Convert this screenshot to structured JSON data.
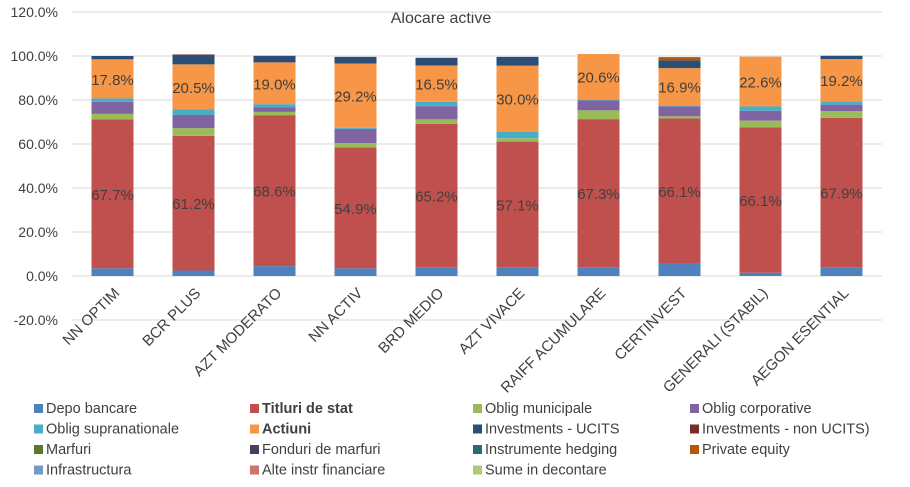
{
  "chart_data": {
    "type": "bar",
    "stacked": true,
    "title": "Alocare active",
    "xlabel": "",
    "ylabel": "",
    "ylim": [
      -0.2,
      1.2
    ],
    "yticks": [
      -0.2,
      0.0,
      0.2,
      0.4,
      0.6,
      0.8,
      1.0,
      1.2
    ],
    "ytick_labels": [
      "-20.0%",
      "0.0%",
      "20.0%",
      "40.0%",
      "60.0%",
      "80.0%",
      "100.0%",
      "120.0%"
    ],
    "grid": true,
    "legend_position": "bottom",
    "categories": [
      "NN OPTIM",
      "BCR PLUS",
      "AZT MODERATO",
      "NN ACTIV",
      "BRD MEDIO",
      "AZT VIVACE",
      "RAIFF ACUMULARE",
      "CERTINVEST",
      "GENERALI (STABIL)",
      "AEGON ESENTIAL"
    ],
    "series": [
      {
        "name": "Depo bancare",
        "color": "#4F81BD",
        "values": [
          0.035,
          0.025,
          0.045,
          0.035,
          0.04,
          0.04,
          0.04,
          0.055,
          0.015,
          0.04
        ]
      },
      {
        "name": "Titluri de stat",
        "color": "#C0504D",
        "values": [
          0.677,
          0.612,
          0.686,
          0.549,
          0.652,
          0.571,
          0.673,
          0.661,
          0.661,
          0.679
        ],
        "labels": [
          "67.7%",
          "61.2%",
          "68.6%",
          "54.9%",
          "65.2%",
          "57.1%",
          "67.3%",
          "66.1%",
          "66.1%",
          "67.9%"
        ]
      },
      {
        "name": "Oblig municipale",
        "color": "#9BBB59",
        "values": [
          0.025,
          0.035,
          0.015,
          0.02,
          0.02,
          0.015,
          0.04,
          0.01,
          0.03,
          0.03
        ]
      },
      {
        "name": "Oblig corporative",
        "color": "#8064A2",
        "values": [
          0.055,
          0.06,
          0.02,
          0.065,
          0.06,
          0.0,
          0.045,
          0.045,
          0.045,
          0.03
        ]
      },
      {
        "name": "Oblig supranationale",
        "color": "#4BACC6",
        "values": [
          0.015,
          0.025,
          0.015,
          0.005,
          0.02,
          0.03,
          0.005,
          0.005,
          0.02,
          0.015
        ]
      },
      {
        "name": "Actiuni",
        "color": "#F79646",
        "values": [
          0.178,
          0.205,
          0.19,
          0.292,
          0.165,
          0.3,
          0.206,
          0.169,
          0.226,
          0.192
        ],
        "labels": [
          "17.8%",
          "20.5%",
          "19.0%",
          "29.2%",
          "16.5%",
          "30.0%",
          "20.6%",
          "16.9%",
          "22.6%",
          "19.2%"
        ]
      },
      {
        "name": "Investments - UCITS",
        "color": "#2C4D75",
        "values": [
          0.015,
          0.04,
          0.03,
          0.03,
          0.035,
          0.04,
          0.0,
          0.035,
          0.0,
          0.015
        ]
      },
      {
        "name": "Investments - non UCITS)",
        "color": "#772C2A",
        "values": [
          0,
          0.005,
          0,
          0,
          0,
          0,
          0,
          0,
          0,
          0
        ]
      },
      {
        "name": "Marfuri",
        "color": "#5F7530",
        "values": [
          0,
          0,
          0,
          0,
          0,
          0,
          0,
          0,
          0,
          0
        ]
      },
      {
        "name": "Fonduri de marfuri",
        "color": "#4D3B62",
        "values": [
          0,
          0,
          0,
          0,
          0,
          0,
          0,
          0,
          0,
          0
        ]
      },
      {
        "name": "Instrumente hedging",
        "color": "#276A7C",
        "values": [
          0,
          0,
          0,
          0,
          0,
          0,
          0,
          0,
          0,
          0
        ]
      },
      {
        "name": "Private equity",
        "color": "#B65708",
        "values": [
          0,
          0,
          0,
          0,
          0,
          0,
          0,
          0.015,
          0,
          0
        ]
      },
      {
        "name": "Infrastructura",
        "color": "#729ACA",
        "values": [
          0,
          0,
          0,
          0,
          0,
          0,
          0,
          0,
          0,
          0
        ]
      },
      {
        "name": "Alte instr financiare",
        "color": "#CD7371",
        "values": [
          0,
          0,
          0,
          0,
          0,
          0,
          0,
          0,
          0,
          0
        ]
      },
      {
        "name": "Sume in decontare",
        "color": "#AFC97A",
        "values": [
          0,
          0,
          0,
          0,
          0,
          0,
          0,
          0,
          0,
          0
        ]
      }
    ],
    "bold_legend_entries": [
      "Titluri de stat",
      "Actiuni"
    ]
  }
}
